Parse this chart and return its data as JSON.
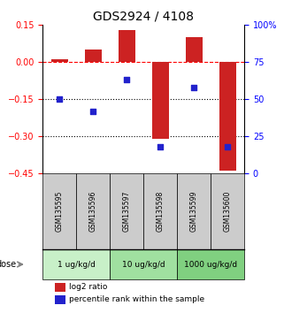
{
  "title": "GDS2924 / 4108",
  "samples": [
    "GSM135595",
    "GSM135596",
    "GSM135597",
    "GSM135598",
    "GSM135599",
    "GSM135600"
  ],
  "log2_ratio": [
    0.01,
    0.05,
    0.13,
    -0.31,
    0.1,
    -0.44
  ],
  "percentile_rank": [
    50,
    42,
    63,
    18,
    58,
    18
  ],
  "ylim_left": [
    -0.45,
    0.15
  ],
  "ylim_right": [
    0,
    100
  ],
  "hline_dashed": 0,
  "hlines_dotted": [
    -0.15,
    -0.3
  ],
  "bar_color": "#cc2222",
  "point_color": "#2222cc",
  "dose_groups": [
    {
      "label": "1 ug/kg/d",
      "samples": [
        0,
        1
      ],
      "color": "#c8f0c8"
    },
    {
      "label": "10 ug/kg/d",
      "samples": [
        2,
        3
      ],
      "color": "#a0e0a0"
    },
    {
      "label": "1000 ug/kg/d",
      "samples": [
        4,
        5
      ],
      "color": "#80d080"
    }
  ],
  "legend_log2": "log2 ratio",
  "legend_pct": "percentile rank within the sample",
  "bar_width": 0.5,
  "sample_bg": "#cccccc",
  "yticks_left": [
    -0.45,
    -0.3,
    -0.15,
    0,
    0.15
  ],
  "yticks_right": [
    0,
    25,
    50,
    75,
    100
  ],
  "ytick_right_labels": [
    "0",
    "25",
    "50",
    "75",
    "100%"
  ]
}
